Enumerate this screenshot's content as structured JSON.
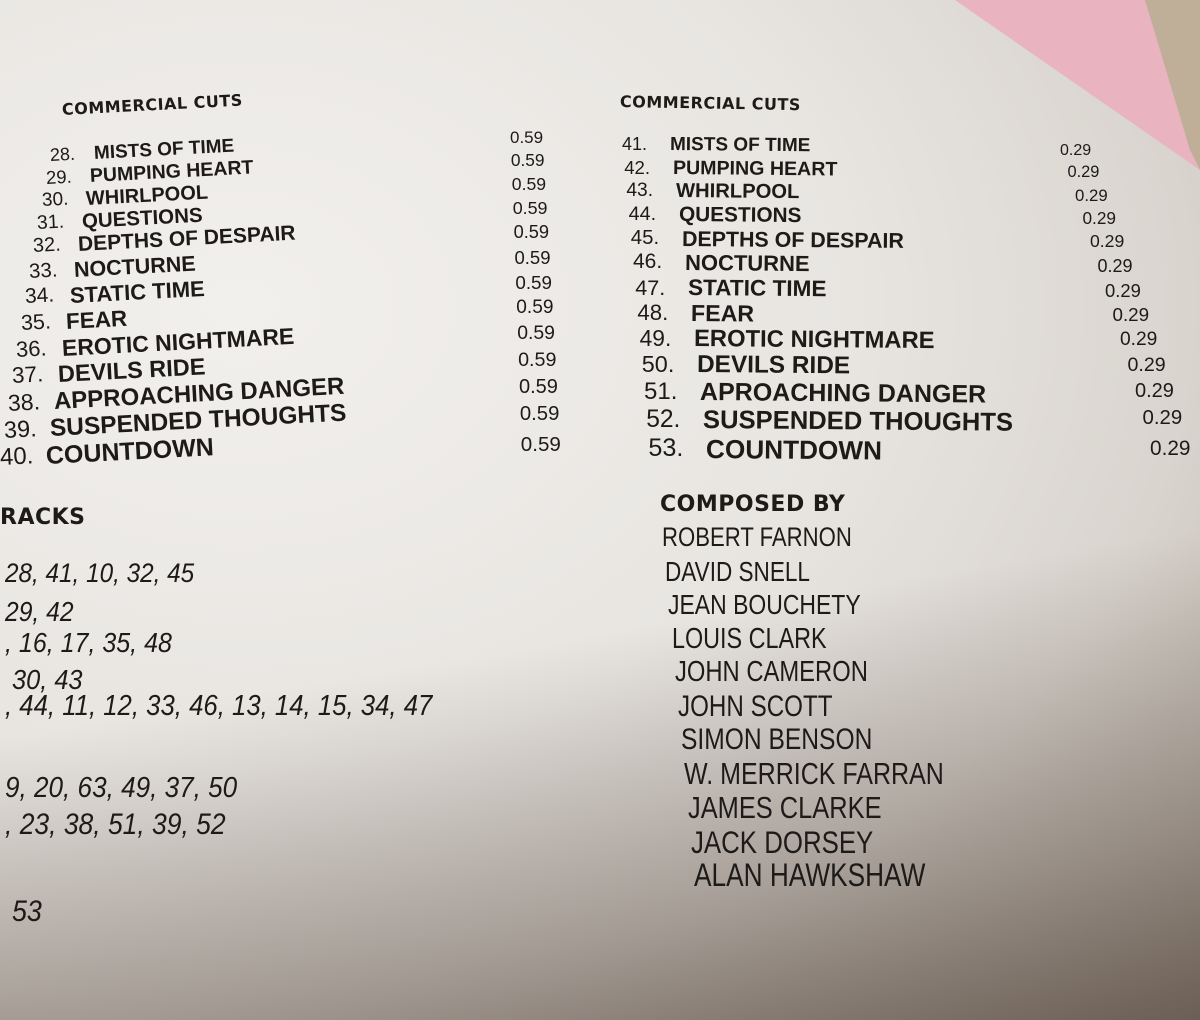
{
  "colors": {
    "paper": "#e8e5e1",
    "pink": "#e9b3c0",
    "text": "#1d1a18"
  },
  "left_cuts": {
    "heading": "COMMERCIAL CUTS",
    "items": [
      {
        "num": "28.",
        "title": "MISTS OF TIME",
        "time": "0.59"
      },
      {
        "num": "29.",
        "title": "PUMPING HEART",
        "time": "0.59"
      },
      {
        "num": "30.",
        "title": "WHIRLPOOL",
        "time": "0.59"
      },
      {
        "num": "31.",
        "title": "QUESTIONS",
        "time": "0.59"
      },
      {
        "num": "32.",
        "title": "DEPTHS OF DESPAIR",
        "time": "0.59"
      },
      {
        "num": "33.",
        "title": "NOCTURNE",
        "time": "0.59"
      },
      {
        "num": "34.",
        "title": "STATIC TIME",
        "time": "0.59"
      },
      {
        "num": "35.",
        "title": "FEAR",
        "time": "0.59"
      },
      {
        "num": "36.",
        "title": "EROTIC NIGHTMARE",
        "time": "0.59"
      },
      {
        "num": "37.",
        "title": "DEVILS RIDE",
        "time": "0.59"
      },
      {
        "num": "38.",
        "title": "APPROACHING DANGER",
        "time": "0.59"
      },
      {
        "num": "39.",
        "title": "SUSPENDED THOUGHTS",
        "time": "0.59"
      },
      {
        "num": "40.",
        "title": "COUNTDOWN",
        "time": "0.59"
      }
    ]
  },
  "right_cuts": {
    "heading": "COMMERCIAL CUTS",
    "items": [
      {
        "num": "41.",
        "title": "MISTS OF TIME",
        "time": "0.29"
      },
      {
        "num": "42.",
        "title": "PUMPING HEART",
        "time": "0.29"
      },
      {
        "num": "43.",
        "title": "WHIRLPOOL",
        "time": "0.29"
      },
      {
        "num": "44.",
        "title": "QUESTIONS",
        "time": "0.29"
      },
      {
        "num": "45.",
        "title": "DEPTHS OF DESPAIR",
        "time": "0.29"
      },
      {
        "num": "46.",
        "title": "NOCTURNE",
        "time": "0.29"
      },
      {
        "num": "47.",
        "title": "STATIC TIME",
        "time": "0.29"
      },
      {
        "num": "48.",
        "title": "FEAR",
        "time": "0.29"
      },
      {
        "num": "49.",
        "title": "EROTIC NIGHTMARE",
        "time": "0.29"
      },
      {
        "num": "50.",
        "title": "DEVILS RIDE",
        "time": "0.29"
      },
      {
        "num": "51.",
        "title": "APROACHING DANGER",
        "time": "0.29"
      },
      {
        "num": "52.",
        "title": "SUSPENDED THOUGHTS",
        "time": "0.29"
      },
      {
        "num": "53.",
        "title": "COUNTDOWN",
        "time": "0.29"
      }
    ]
  },
  "tracks": {
    "heading": "RACKS",
    "lines": [
      "28, 41, 10, 32, 45",
      "29, 42",
      ", 16, 17, 35, 48",
      "30, 43",
      ", 44, 11, 12, 33, 46, 13, 14, 15, 34, 47",
      "9, 20, 63, 49, 37, 50",
      ", 23, 38, 51, 39, 52",
      "53"
    ]
  },
  "composers": {
    "heading": "COMPOSED BY",
    "names": [
      "ROBERT FARNON",
      "DAVID SNELL",
      "JEAN BOUCHETY",
      "LOUIS CLARK",
      "JOHN CAMERON",
      "JOHN SCOTT",
      "SIMON BENSON",
      "W. MERRICK FARRAN",
      "JAMES CLARKE",
      "JACK DORSEY",
      "ALAN HAWKSHAW"
    ]
  }
}
